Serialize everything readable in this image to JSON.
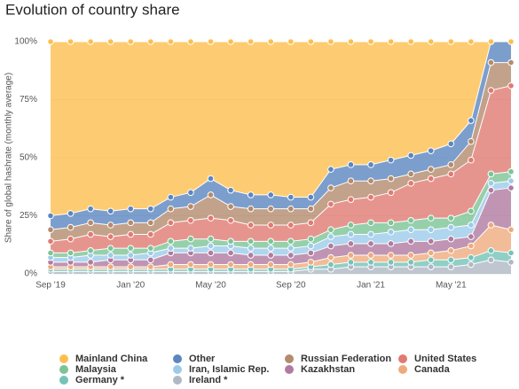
{
  "chart_data": {
    "type": "stacked-area",
    "title": "Evolution of country share",
    "y_label": "Share of global hashrate (monthly average)",
    "categories": [
      "Sep '19",
      null,
      null,
      null,
      "Jan '20",
      null,
      null,
      null,
      "May '20",
      null,
      null,
      null,
      "Sep '20",
      null,
      null,
      null,
      "Jan '21",
      null,
      null,
      null,
      "May '21",
      null,
      null,
      null
    ],
    "ylim": [
      0,
      100
    ],
    "yticks": [
      {
        "value": 0,
        "label": "0%"
      },
      {
        "value": 25,
        "label": "25%"
      },
      {
        "value": 50,
        "label": "50%"
      },
      {
        "value": 75,
        "label": "75%"
      },
      {
        "value": 100,
        "label": "100%"
      }
    ],
    "grid": true,
    "series": [
      {
        "name": "Mainland China",
        "color": "#fcbf4f",
        "values": [
          75,
          74,
          72,
          73,
          72,
          72,
          67,
          65,
          59,
          64,
          66,
          66,
          67,
          67,
          55,
          53,
          53,
          51,
          49,
          47,
          44,
          34,
          0,
          0
        ]
      },
      {
        "name": "Other",
        "color": "#5b86c0",
        "values": [
          6,
          6,
          6,
          6,
          6,
          6,
          5,
          6,
          7,
          7,
          6,
          6,
          5,
          5,
          8,
          7,
          7,
          8,
          8,
          8,
          9,
          9,
          9,
          9
        ]
      },
      {
        "name": "Russian Federation",
        "color": "#b38b6d",
        "values": [
          5,
          5,
          5,
          5,
          5,
          5,
          6,
          6,
          10,
          6,
          7,
          7,
          7,
          6,
          7,
          8,
          7,
          6,
          4,
          4,
          4,
          8,
          12,
          10
        ]
      },
      {
        "name": "United States",
        "color": "#e07b72",
        "values": [
          5,
          6,
          7,
          5,
          6,
          6,
          8,
          8,
          9,
          9,
          7,
          7,
          7,
          7,
          11,
          11,
          11,
          13,
          16,
          17,
          19,
          22,
          36,
          37
        ]
      },
      {
        "name": "Malaysia",
        "color": "#7cc496",
        "values": [
          2,
          2,
          2,
          3,
          3,
          2,
          3,
          4,
          3,
          2,
          3,
          3,
          3,
          3,
          3,
          4,
          5,
          4,
          4,
          5,
          4,
          6,
          4,
          4
        ]
      },
      {
        "name": "Iran, Islamic Rep.",
        "color": "#9ccbea",
        "values": [
          2,
          2,
          3,
          2,
          2,
          3,
          2,
          2,
          3,
          3,
          3,
          3,
          3,
          3,
          4,
          4,
          4,
          5,
          5,
          5,
          5,
          5,
          3,
          3
        ]
      },
      {
        "name": "Kazakhstan",
        "color": "#b07ba0",
        "values": [
          2,
          2,
          2,
          3,
          3,
          3,
          5,
          5,
          5,
          5,
          4,
          4,
          4,
          4,
          5,
          5,
          5,
          5,
          6,
          5,
          5,
          4,
          15,
          18
        ]
      },
      {
        "name": "Canada",
        "color": "#eeab7d",
        "values": [
          1,
          1,
          1,
          1,
          1,
          1,
          2,
          2,
          2,
          2,
          2,
          2,
          2,
          2,
          3,
          3,
          3,
          3,
          3,
          3,
          4,
          5,
          11,
          10
        ]
      },
      {
        "name": "Germany *",
        "color": "#74c3b8",
        "values": [
          1,
          1,
          1,
          1,
          1,
          1,
          1,
          1,
          1,
          1,
          1,
          1,
          1,
          1,
          2,
          2,
          2,
          2,
          2,
          3,
          3,
          3,
          4,
          4
        ]
      },
      {
        "name": "Ireland *",
        "color": "#b0b8c4",
        "values": [
          1,
          1,
          1,
          1,
          1,
          1,
          1,
          1,
          1,
          1,
          1,
          1,
          1,
          2,
          2,
          3,
          3,
          3,
          3,
          3,
          3,
          4,
          6,
          5
        ]
      }
    ]
  }
}
